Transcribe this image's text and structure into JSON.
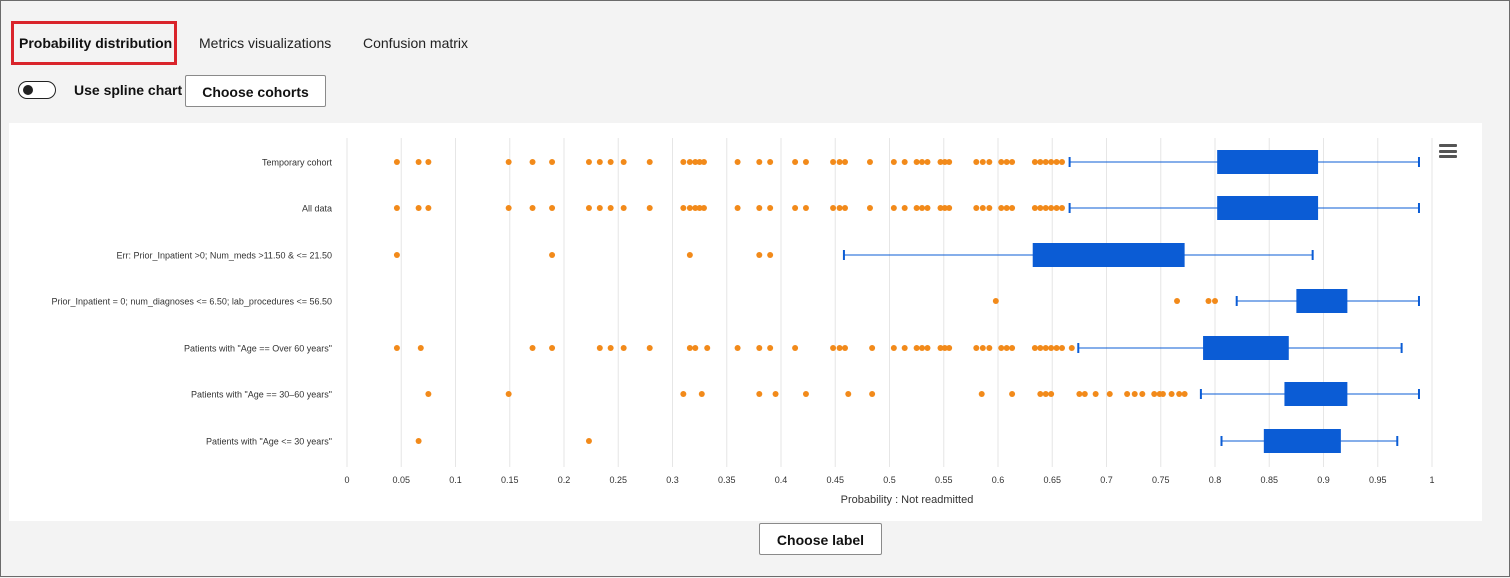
{
  "tabs": [
    {
      "label": "Probability distribution",
      "active": true
    },
    {
      "label": "Metrics visualizations",
      "active": false
    },
    {
      "label": "Confusion matrix",
      "active": false
    }
  ],
  "toolbar": {
    "spline_toggle_label": "Use spline chart",
    "spline_enabled": false,
    "choose_cohorts_label": "Choose cohorts"
  },
  "footer": {
    "choose_label_button": "Choose label"
  },
  "colors": {
    "box": "#0b5cd5",
    "outlier": "#f28a1a",
    "grid": "#e6e6e6",
    "highlight": "#d9242b"
  },
  "chart_data": {
    "type": "box",
    "orientation": "horizontal",
    "xlabel": "Probability : Not readmitted",
    "xlim": [
      0,
      1
    ],
    "xticks": [
      0,
      0.05,
      0.1,
      0.15,
      0.2,
      0.25,
      0.3,
      0.35,
      0.4,
      0.45,
      0.5,
      0.55,
      0.6,
      0.65,
      0.7,
      0.75,
      0.8,
      0.85,
      0.9,
      0.95,
      1
    ],
    "xtick_labels": [
      "0",
      "0.05",
      "0.1",
      "0.15",
      "0.2",
      "0.25",
      "0.3",
      "0.35",
      "0.4",
      "0.45",
      "0.5",
      "0.55",
      "0.6",
      "0.65",
      "0.7",
      "0.75",
      "0.8",
      "0.85",
      "0.9",
      "0.95",
      "1"
    ],
    "series": [
      {
        "name": "Temporary cohort",
        "low": 0.666,
        "q1": 0.802,
        "median": 0.85,
        "q3": 0.895,
        "high": 0.988,
        "outliers": [
          0.046,
          0.066,
          0.075,
          0.149,
          0.171,
          0.189,
          0.223,
          0.233,
          0.243,
          0.255,
          0.279,
          0.31,
          0.316,
          0.321,
          0.325,
          0.329,
          0.36,
          0.38,
          0.39,
          0.413,
          0.423,
          0.448,
          0.454,
          0.459,
          0.482,
          0.504,
          0.514,
          0.525,
          0.53,
          0.535,
          0.547,
          0.551,
          0.555,
          0.58,
          0.586,
          0.592,
          0.603,
          0.608,
          0.613,
          0.634,
          0.639,
          0.644,
          0.649,
          0.654,
          0.659
        ]
      },
      {
        "name": "All data",
        "low": 0.666,
        "q1": 0.802,
        "median": 0.85,
        "q3": 0.895,
        "high": 0.988,
        "outliers": [
          0.046,
          0.066,
          0.075,
          0.149,
          0.171,
          0.189,
          0.223,
          0.233,
          0.243,
          0.255,
          0.279,
          0.31,
          0.316,
          0.321,
          0.325,
          0.329,
          0.36,
          0.38,
          0.39,
          0.413,
          0.423,
          0.448,
          0.454,
          0.459,
          0.482,
          0.504,
          0.514,
          0.525,
          0.53,
          0.535,
          0.547,
          0.551,
          0.555,
          0.58,
          0.586,
          0.592,
          0.603,
          0.608,
          0.613,
          0.634,
          0.639,
          0.644,
          0.649,
          0.654,
          0.659
        ]
      },
      {
        "name": "Err: Prior_Inpatient >0; Num_meds >11.50 & <= 21.50",
        "low": 0.458,
        "q1": 0.632,
        "median": 0.7,
        "q3": 0.772,
        "high": 0.89,
        "outliers": [
          0.046,
          0.189,
          0.316,
          0.38,
          0.39
        ]
      },
      {
        "name": "Prior_Inpatient = 0; num_diagnoses <= 6.50; lab_procedures <= 56.50",
        "low": 0.82,
        "q1": 0.875,
        "median": 0.9,
        "q3": 0.922,
        "high": 0.988,
        "outliers": [
          0.598,
          0.765,
          0.794,
          0.8
        ]
      },
      {
        "name": "Patients with \"Age == Over 60 years\"",
        "low": 0.674,
        "q1": 0.789,
        "median": 0.83,
        "q3": 0.868,
        "high": 0.972,
        "outliers": [
          0.046,
          0.068,
          0.171,
          0.189,
          0.233,
          0.243,
          0.255,
          0.279,
          0.316,
          0.321,
          0.332,
          0.36,
          0.38,
          0.39,
          0.413,
          0.448,
          0.454,
          0.459,
          0.484,
          0.504,
          0.514,
          0.525,
          0.53,
          0.535,
          0.547,
          0.551,
          0.555,
          0.58,
          0.586,
          0.592,
          0.603,
          0.608,
          0.613,
          0.634,
          0.639,
          0.644,
          0.649,
          0.654,
          0.659,
          0.668
        ]
      },
      {
        "name": "Patients with \"Age == 30–60 years\"",
        "low": 0.787,
        "q1": 0.864,
        "median": 0.89,
        "q3": 0.922,
        "high": 0.988,
        "outliers": [
          0.075,
          0.149,
          0.31,
          0.327,
          0.38,
          0.395,
          0.423,
          0.462,
          0.484,
          0.585,
          0.613,
          0.639,
          0.644,
          0.649,
          0.675,
          0.68,
          0.69,
          0.703,
          0.719,
          0.726,
          0.733,
          0.744,
          0.749,
          0.752,
          0.76,
          0.767,
          0.772
        ]
      },
      {
        "name": "Patients with \"Age <= 30 years\"",
        "low": 0.806,
        "q1": 0.845,
        "median": 0.88,
        "q3": 0.916,
        "high": 0.968,
        "outliers": [
          0.066,
          0.223
        ]
      }
    ]
  }
}
